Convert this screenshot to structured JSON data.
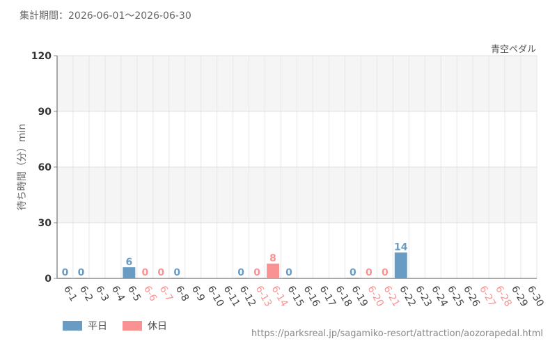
{
  "period_label": "集計期間：2026-06-01～2026-06-30",
  "attraction_name": "青空ペダル",
  "source_url": "https://parksreal.jp/sagamiko-resort/attraction/aozorapedal.html",
  "legend": {
    "weekday": {
      "label": "平日",
      "color": "#6a9bc3"
    },
    "holiday": {
      "label": "休日",
      "color": "#f99393"
    }
  },
  "chart_data": {
    "type": "bar",
    "ylabel": "待ち時間（分）min",
    "ylim": [
      0,
      120
    ],
    "yticks": [
      0,
      30,
      60,
      90,
      120
    ],
    "grid": true,
    "categories": [
      "6-1",
      "6-2",
      "6-3",
      "6-4",
      "6-5",
      "6-6",
      "6-7",
      "6-8",
      "6-9",
      "6-10",
      "6-11",
      "6-12",
      "6-13",
      "6-14",
      "6-15",
      "6-16",
      "6-17",
      "6-18",
      "6-19",
      "6-20",
      "6-21",
      "6-22",
      "6-23",
      "6-24",
      "6-25",
      "6-26",
      "6-27",
      "6-28",
      "6-29",
      "6-30"
    ],
    "values": [
      0,
      0,
      null,
      null,
      6,
      0,
      0,
      0,
      null,
      null,
      null,
      0,
      0,
      8,
      0,
      null,
      null,
      null,
      0,
      0,
      0,
      14,
      null,
      null,
      null,
      null,
      null,
      null,
      null,
      null
    ],
    "holiday": [
      false,
      false,
      false,
      false,
      false,
      true,
      true,
      false,
      false,
      false,
      false,
      false,
      true,
      true,
      false,
      false,
      false,
      false,
      false,
      true,
      true,
      false,
      false,
      false,
      false,
      false,
      true,
      true,
      false,
      false
    ]
  }
}
